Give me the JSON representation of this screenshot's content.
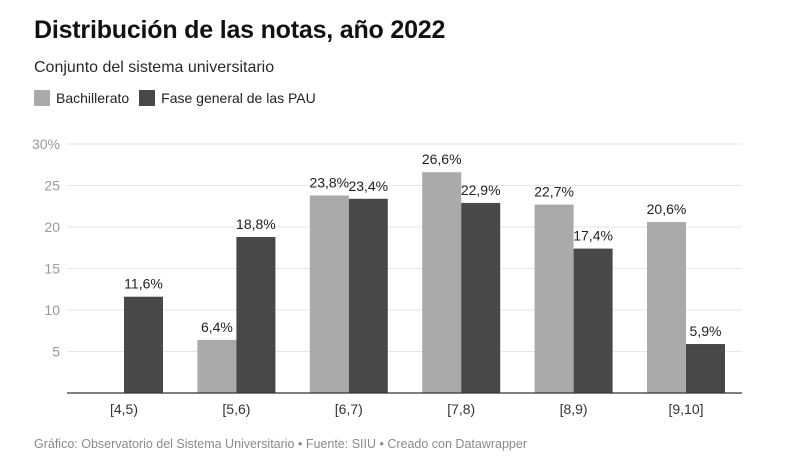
{
  "chart_data": {
    "type": "bar",
    "title": "Distribución de las notas, año 2022",
    "subtitle": "Conjunto del sistema universitario",
    "categories": [
      "[4,5)",
      "[5,6)",
      "[6,7)",
      "[7,8)",
      "[8,9)",
      "[9,10]"
    ],
    "series": [
      {
        "name": "Bachillerato",
        "color": "#aaaaaa",
        "values": [
          null,
          6.4,
          23.8,
          26.6,
          22.7,
          20.6
        ],
        "labels": [
          "",
          "6,4%",
          "23,8%",
          "26,6%",
          "22,7%",
          "20,6%"
        ]
      },
      {
        "name": "Fase general de las PAU",
        "color": "#484848",
        "values": [
          11.6,
          18.8,
          23.4,
          22.9,
          17.4,
          5.9
        ],
        "labels": [
          "11,6%",
          "18,8%",
          "23,4%",
          "22,9%",
          "17,4%",
          "5,9%"
        ]
      }
    ],
    "yticks": [
      5,
      10,
      15,
      20,
      25,
      30
    ],
    "ytick_labels": [
      "5",
      "10",
      "15",
      "20",
      "25",
      "30%"
    ],
    "ylim": [
      0,
      30
    ],
    "xlabel": "",
    "ylabel": "",
    "grid": true,
    "legend": "top-left"
  },
  "footer": "Gráfico: Observatorio del Sistema Universitario • Fuente: SIIU • Creado con Datawrapper"
}
